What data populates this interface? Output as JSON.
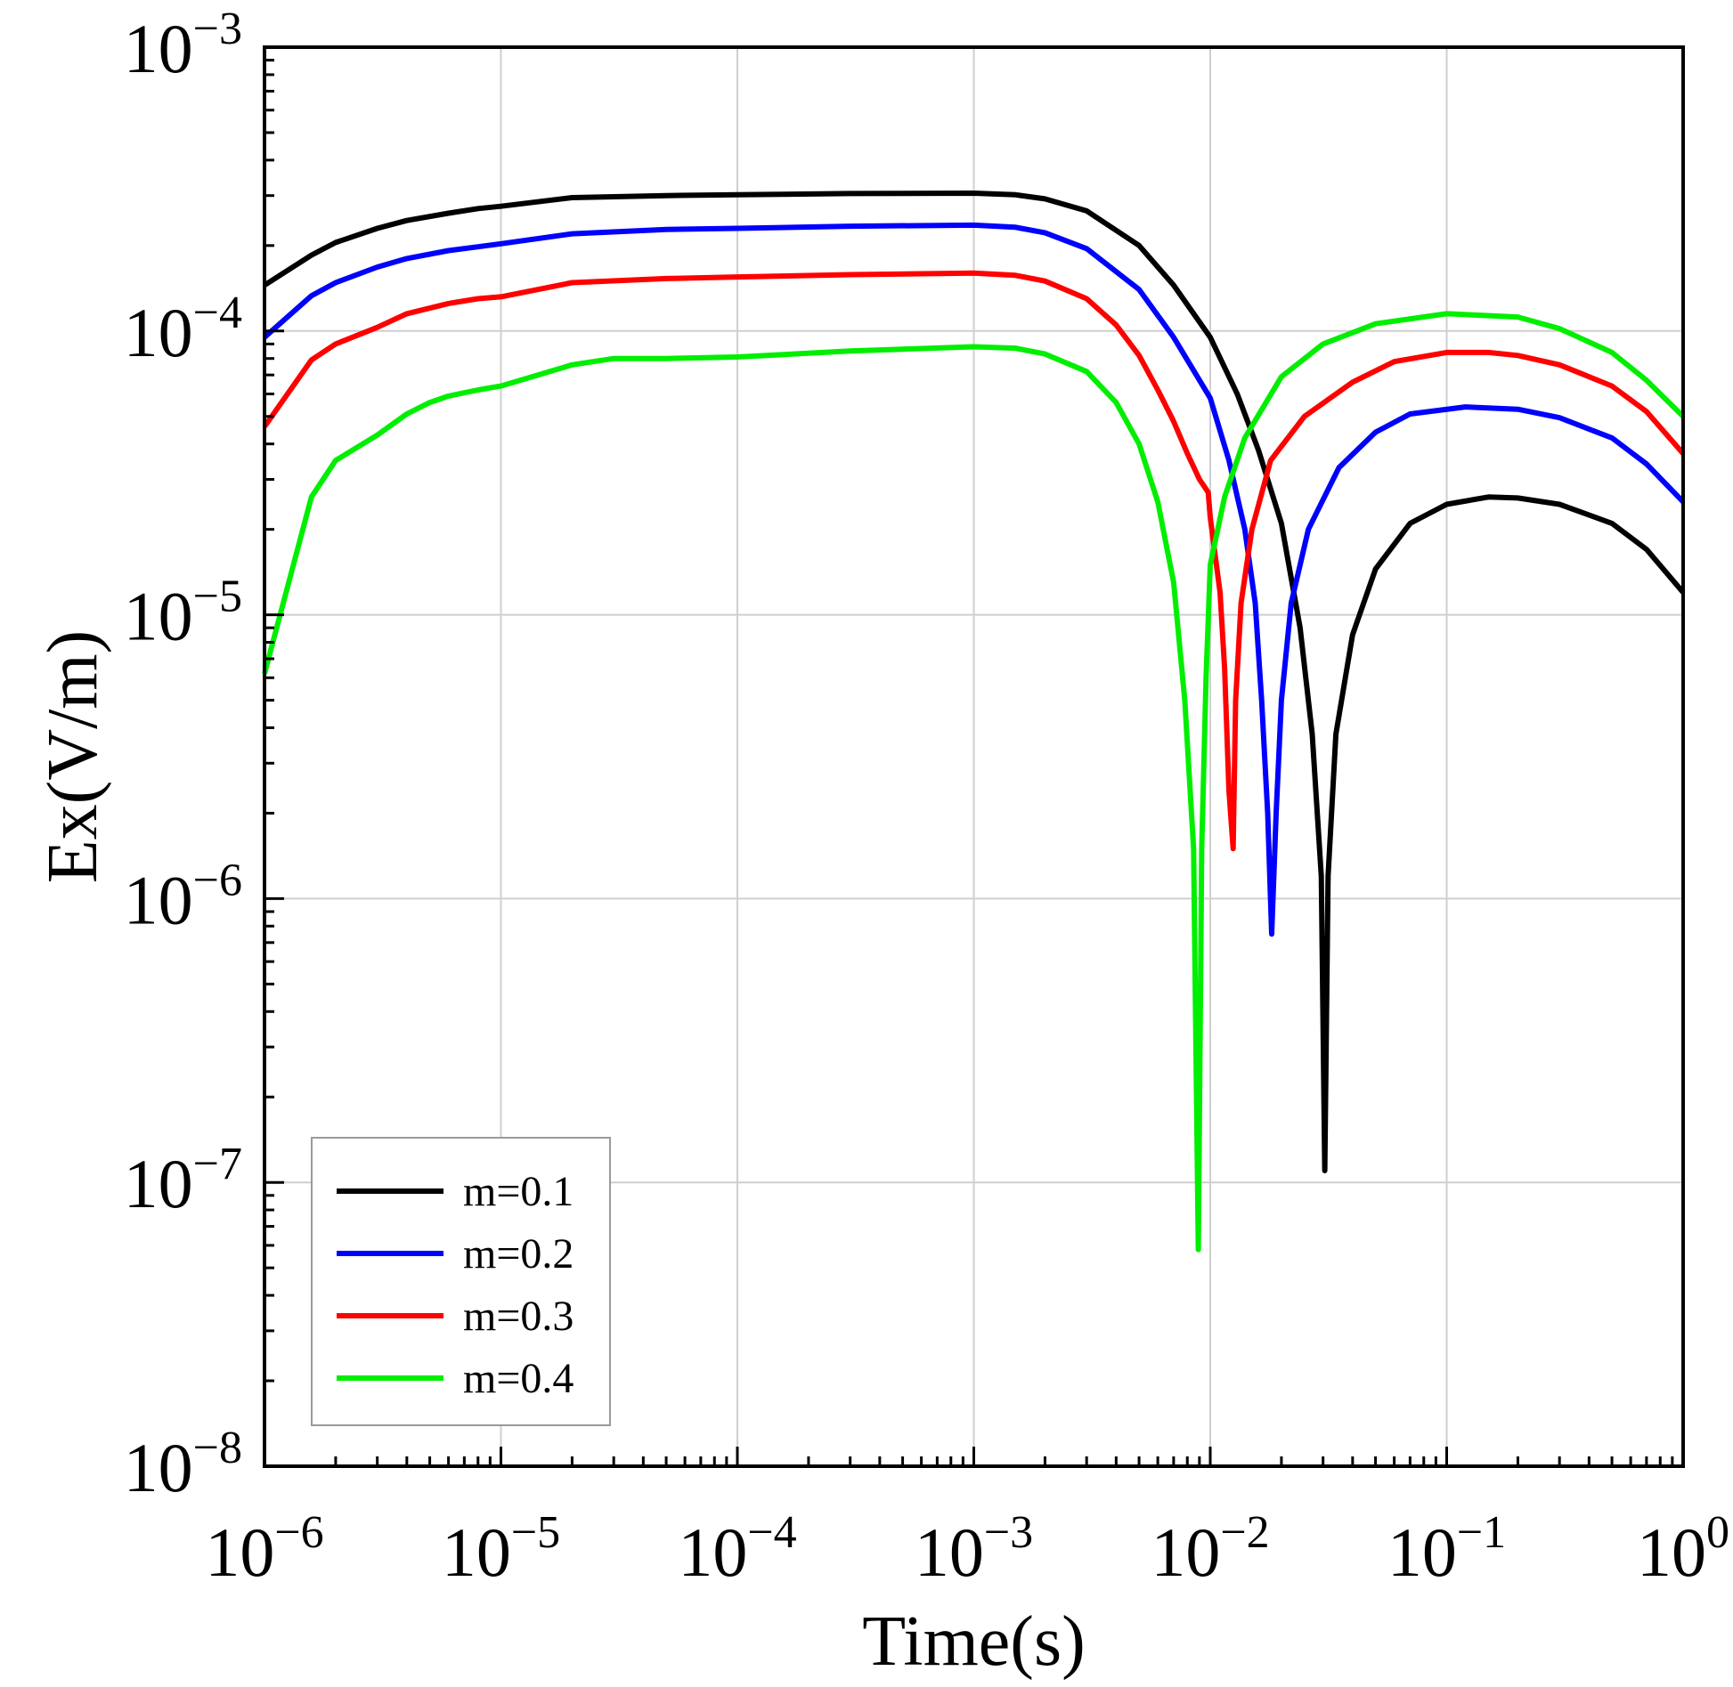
{
  "chart_data": {
    "type": "line",
    "xlabel": "Time(s)",
    "ylabel": "Ex(V/m)",
    "x_scale": "log",
    "y_scale": "log",
    "xlim": [
      1e-06,
      1
    ],
    "ylim": [
      1e-08,
      0.001
    ],
    "grid": true,
    "legend_position": "bottom-left",
    "x_ticks": [
      {
        "base": "10",
        "exp": "−6",
        "value": 1e-06
      },
      {
        "base": "10",
        "exp": "−5",
        "value": 1e-05
      },
      {
        "base": "10",
        "exp": "−4",
        "value": 0.0001
      },
      {
        "base": "10",
        "exp": "−3",
        "value": 0.001
      },
      {
        "base": "10",
        "exp": "−2",
        "value": 0.01
      },
      {
        "base": "10",
        "exp": "−1",
        "value": 0.1
      },
      {
        "base": "10",
        "exp": "0",
        "value": 1
      }
    ],
    "y_ticks": [
      {
        "base": "10",
        "exp": "−8",
        "value": 1e-08
      },
      {
        "base": "10",
        "exp": "−7",
        "value": 1e-07
      },
      {
        "base": "10",
        "exp": "−6",
        "value": 1e-06
      },
      {
        "base": "10",
        "exp": "−5",
        "value": 1e-05
      },
      {
        "base": "10",
        "exp": "−4",
        "value": 0.0001
      },
      {
        "base": "10",
        "exp": "−3",
        "value": 0.001
      }
    ],
    "series": [
      {
        "name": "m=0.1",
        "color": "#000000",
        "points": [
          [
            1e-06,
            0.000145
          ],
          [
            1.58e-06,
            0.000185
          ],
          [
            2e-06,
            0.000205
          ],
          [
            3e-06,
            0.00023
          ],
          [
            4e-06,
            0.000245
          ],
          [
            6e-06,
            0.00026
          ],
          [
            8e-06,
            0.00027
          ],
          [
            1e-05,
            0.000275
          ],
          [
            2e-05,
            0.000295
          ],
          [
            5e-05,
            0.0003
          ],
          [
            0.0001,
            0.000302
          ],
          [
            0.0003,
            0.000305
          ],
          [
            0.001,
            0.000306
          ],
          [
            0.0015,
            0.000302
          ],
          [
            0.002,
            0.000292
          ],
          [
            0.003,
            0.000265
          ],
          [
            0.005,
            0.0002
          ],
          [
            0.007,
            0.000145
          ],
          [
            0.01,
            9.5e-05
          ],
          [
            0.013,
            6e-05
          ],
          [
            0.016,
            3.8e-05
          ],
          [
            0.02,
            2.1e-05
          ],
          [
            0.024,
            9e-06
          ],
          [
            0.027,
            3.8e-06
          ],
          [
            0.0295,
            1.2e-06
          ],
          [
            0.0305,
            1.1e-07
          ],
          [
            0.0315,
            1.2e-06
          ],
          [
            0.034,
            3.8e-06
          ],
          [
            0.04,
            8.5e-06
          ],
          [
            0.05,
            1.45e-05
          ],
          [
            0.07,
            2.1e-05
          ],
          [
            0.1,
            2.45e-05
          ],
          [
            0.15,
            2.6e-05
          ],
          [
            0.2,
            2.58e-05
          ],
          [
            0.3,
            2.45e-05
          ],
          [
            0.5,
            2.1e-05
          ],
          [
            0.7,
            1.7e-05
          ],
          [
            1,
            1.2e-05
          ]
        ]
      },
      {
        "name": "m=0.2",
        "color": "#0000ff",
        "points": [
          [
            1e-06,
            9.5e-05
          ],
          [
            1.58e-06,
            0.000133
          ],
          [
            2e-06,
            0.000148
          ],
          [
            3e-06,
            0.000168
          ],
          [
            4e-06,
            0.00018
          ],
          [
            6e-06,
            0.000192
          ],
          [
            8e-06,
            0.000198
          ],
          [
            1e-05,
            0.000203
          ],
          [
            2e-05,
            0.00022
          ],
          [
            5e-05,
            0.000228
          ],
          [
            0.0001,
            0.00023
          ],
          [
            0.0003,
            0.000234
          ],
          [
            0.001,
            0.000236
          ],
          [
            0.0015,
            0.000232
          ],
          [
            0.002,
            0.000222
          ],
          [
            0.003,
            0.000195
          ],
          [
            0.005,
            0.00014
          ],
          [
            0.007,
            9.5e-05
          ],
          [
            0.01,
            5.8e-05
          ],
          [
            0.012,
            3.5e-05
          ],
          [
            0.014,
            2e-05
          ],
          [
            0.0155,
            1.1e-05
          ],
          [
            0.0165,
            5e-06
          ],
          [
            0.0175,
            2e-06
          ],
          [
            0.0182,
            7.5e-07
          ],
          [
            0.019,
            2e-06
          ],
          [
            0.02,
            5e-06
          ],
          [
            0.022,
            1.1e-05
          ],
          [
            0.026,
            2e-05
          ],
          [
            0.035,
            3.3e-05
          ],
          [
            0.05,
            4.4e-05
          ],
          [
            0.07,
            5.1e-05
          ],
          [
            0.12,
            5.4e-05
          ],
          [
            0.2,
            5.3e-05
          ],
          [
            0.3,
            4.95e-05
          ],
          [
            0.5,
            4.2e-05
          ],
          [
            0.7,
            3.4e-05
          ],
          [
            1,
            2.5e-05
          ]
        ]
      },
      {
        "name": "m=0.3",
        "color": "#ff0000",
        "points": [
          [
            1e-06,
            4.6e-05
          ],
          [
            1.58e-06,
            7.9e-05
          ],
          [
            2e-06,
            9e-05
          ],
          [
            3e-06,
            0.000103
          ],
          [
            4e-06,
            0.000115
          ],
          [
            6e-06,
            0.000125
          ],
          [
            8e-06,
            0.00013
          ],
          [
            1e-05,
            0.000132
          ],
          [
            2e-05,
            0.000148
          ],
          [
            5e-05,
            0.000153
          ],
          [
            0.0001,
            0.000155
          ],
          [
            0.0003,
            0.000158
          ],
          [
            0.001,
            0.00016
          ],
          [
            0.0015,
            0.000157
          ],
          [
            0.002,
            0.00015
          ],
          [
            0.003,
            0.00013
          ],
          [
            0.004,
            0.000105
          ],
          [
            0.005,
            8.2e-05
          ],
          [
            0.006,
            6.2e-05
          ],
          [
            0.007,
            4.8e-05
          ],
          [
            0.008,
            3.7e-05
          ],
          [
            0.009,
            3e-05
          ],
          [
            0.0098,
            2.7e-05
          ],
          [
            0.01,
            2.2e-05
          ],
          [
            0.011,
            1.2e-05
          ],
          [
            0.0115,
            6.5e-06
          ],
          [
            0.012,
            2.4e-06
          ],
          [
            0.0125,
            1.5e-06
          ],
          [
            0.0128,
            5e-06
          ],
          [
            0.0135,
            1.1e-05
          ],
          [
            0.015,
            2e-05
          ],
          [
            0.018,
            3.5e-05
          ],
          [
            0.025,
            5e-05
          ],
          [
            0.04,
            6.6e-05
          ],
          [
            0.06,
            7.8e-05
          ],
          [
            0.1,
            8.4e-05
          ],
          [
            0.15,
            8.4e-05
          ],
          [
            0.2,
            8.2e-05
          ],
          [
            0.3,
            7.6e-05
          ],
          [
            0.5,
            6.4e-05
          ],
          [
            0.7,
            5.2e-05
          ],
          [
            1,
            3.7e-05
          ]
        ]
      },
      {
        "name": "m=0.4",
        "color": "#00ee00",
        "points": [
          [
            1e-06,
            6.2e-06
          ],
          [
            1.58e-06,
            2.6e-05
          ],
          [
            2e-06,
            3.5e-05
          ],
          [
            3e-06,
            4.3e-05
          ],
          [
            4e-06,
            5.1e-05
          ],
          [
            5e-06,
            5.6e-05
          ],
          [
            6e-06,
            5.9e-05
          ],
          [
            8e-06,
            6.2e-05
          ],
          [
            1e-05,
            6.4e-05
          ],
          [
            2e-05,
            7.6e-05
          ],
          [
            3e-05,
            8e-05
          ],
          [
            5e-05,
            8e-05
          ],
          [
            0.0001,
            8.1e-05
          ],
          [
            0.0003,
            8.5e-05
          ],
          [
            0.001,
            8.8e-05
          ],
          [
            0.0015,
            8.7e-05
          ],
          [
            0.002,
            8.3e-05
          ],
          [
            0.003,
            7.2e-05
          ],
          [
            0.004,
            5.6e-05
          ],
          [
            0.005,
            4e-05
          ],
          [
            0.006,
            2.5e-05
          ],
          [
            0.007,
            1.3e-05
          ],
          [
            0.0078,
            5e-06
          ],
          [
            0.0085,
            1.5e-06
          ],
          [
            0.0089,
            5.8e-08
          ],
          [
            0.0092,
            1.5e-06
          ],
          [
            0.0096,
            6e-06
          ],
          [
            0.01,
            1.5e-05
          ],
          [
            0.0115,
            2.6e-05
          ],
          [
            0.014,
            4.2e-05
          ],
          [
            0.02,
            6.9e-05
          ],
          [
            0.03,
            9e-05
          ],
          [
            0.05,
            0.000106
          ],
          [
            0.1,
            0.000115
          ],
          [
            0.2,
            0.000112
          ],
          [
            0.3,
            0.000102
          ],
          [
            0.5,
            8.4e-05
          ],
          [
            0.7,
            6.7e-05
          ],
          [
            1,
            5e-05
          ]
        ]
      }
    ]
  }
}
